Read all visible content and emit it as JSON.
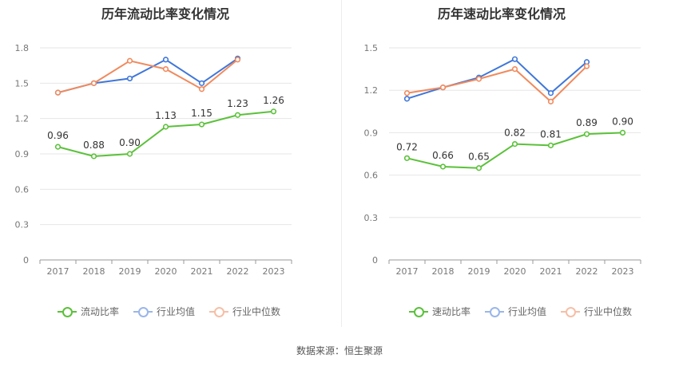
{
  "source": "数据来源：恒生聚源",
  "chart_data": [
    {
      "type": "line",
      "title": "历年流动比率变化情况",
      "categories": [
        "2017",
        "2018",
        "2019",
        "2020",
        "2021",
        "2022",
        "2023"
      ],
      "ylim": [
        0,
        1.8
      ],
      "yticks": [
        "0",
        "0.3",
        "0.6",
        "0.9",
        "1.2",
        "1.5",
        "1.8"
      ],
      "grid": true,
      "legend_position": "bottom",
      "series": [
        {
          "name": "流动比率",
          "color": "#5bc13a",
          "values": [
            0.96,
            0.88,
            0.9,
            1.13,
            1.15,
            1.23,
            1.26
          ],
          "labels": [
            "0.96",
            "0.88",
            "0.90",
            "1.13",
            "1.15",
            "1.23",
            "1.26"
          ]
        },
        {
          "name": "行业均值",
          "color": "#3f76d9",
          "values": [
            1.42,
            1.5,
            1.54,
            1.7,
            1.5,
            1.71,
            null
          ]
        },
        {
          "name": "行业中位数",
          "color": "#f08a5d",
          "values": [
            1.42,
            1.5,
            1.69,
            1.62,
            1.45,
            1.7,
            null
          ]
        }
      ]
    },
    {
      "type": "line",
      "title": "历年速动比率变化情况",
      "categories": [
        "2017",
        "2018",
        "2019",
        "2020",
        "2021",
        "2022",
        "2023"
      ],
      "ylim": [
        0,
        1.5
      ],
      "yticks": [
        "0",
        "0.3",
        "0.6",
        "0.9",
        "1.2",
        "1.5"
      ],
      "grid": true,
      "legend_position": "bottom",
      "series": [
        {
          "name": "速动比率",
          "color": "#5bc13a",
          "values": [
            0.72,
            0.66,
            0.65,
            0.82,
            0.81,
            0.89,
            0.9
          ],
          "labels": [
            "0.72",
            "0.66",
            "0.65",
            "0.82",
            "0.81",
            "0.89",
            "0.90"
          ]
        },
        {
          "name": "行业均值",
          "color": "#3f76d9",
          "values": [
            1.14,
            1.22,
            1.29,
            1.42,
            1.18,
            1.4,
            null
          ]
        },
        {
          "name": "行业中位数",
          "color": "#f08a5d",
          "values": [
            1.18,
            1.22,
            1.28,
            1.35,
            1.12,
            1.37,
            null
          ]
        }
      ]
    }
  ]
}
